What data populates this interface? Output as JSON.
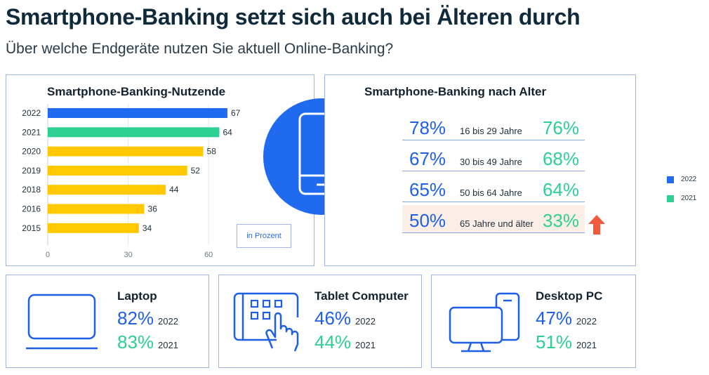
{
  "header": {
    "title": "Smartphone-Banking setzt sich auch bei Älteren durch",
    "subtitle": "Über welche Endgeräte nutzen Sie aktuell Online-Banking?"
  },
  "colors": {
    "blue": "#1f6aef",
    "green": "#2ecf93",
    "yellow": "#ffc800",
    "arrow": "#f15a3c",
    "highlight": "#fbeee6"
  },
  "chart_data": {
    "type": "bar",
    "orientation": "horizontal",
    "title": "Smartphone-Banking-Nutzende",
    "categories": [
      "2022",
      "2021",
      "2020",
      "2019",
      "2018",
      "2016",
      "2015"
    ],
    "values": [
      67,
      64,
      58,
      52,
      44,
      36,
      34
    ],
    "bar_colors": [
      "#1f6aef",
      "#2ecf93",
      "#ffc800",
      "#ffc800",
      "#ffc800",
      "#ffc800",
      "#ffc800"
    ],
    "xlim": [
      0,
      67
    ],
    "xticks": [
      0,
      30,
      60
    ],
    "unit_note": "in Prozent"
  },
  "age": {
    "title": "Smartphone-Banking nach Alter",
    "rows": [
      {
        "label": "16 bis 29 Jahre",
        "v2022": "78%",
        "v2021": "76%"
      },
      {
        "label": "30 bis 49 Jahre",
        "v2022": "67%",
        "v2021": "68%"
      },
      {
        "label": "50 bis 64 Jahre",
        "v2022": "65%",
        "v2021": "64%"
      },
      {
        "label": "65 Jahre und älter",
        "v2022": "50%",
        "v2021": "33%",
        "highlight": true
      }
    ]
  },
  "legend": [
    {
      "label": "2022",
      "color": "#1f6aef"
    },
    {
      "label": "2021",
      "color": "#2ecf93"
    }
  ],
  "devices": [
    {
      "name": "Laptop",
      "icon": "laptop-icon",
      "v2022": "82%",
      "y2022": "2022",
      "v2021": "83%",
      "y2021": "2021"
    },
    {
      "name": "Tablet Computer",
      "icon": "tablet-touch-icon",
      "v2022": "46%",
      "y2022": "2022",
      "v2021": "44%",
      "y2021": "2021"
    },
    {
      "name": "Desktop PC",
      "icon": "desktop-pc-icon",
      "v2022": "47%",
      "y2022": "2022",
      "v2021": "51%",
      "y2021": "2021"
    }
  ]
}
